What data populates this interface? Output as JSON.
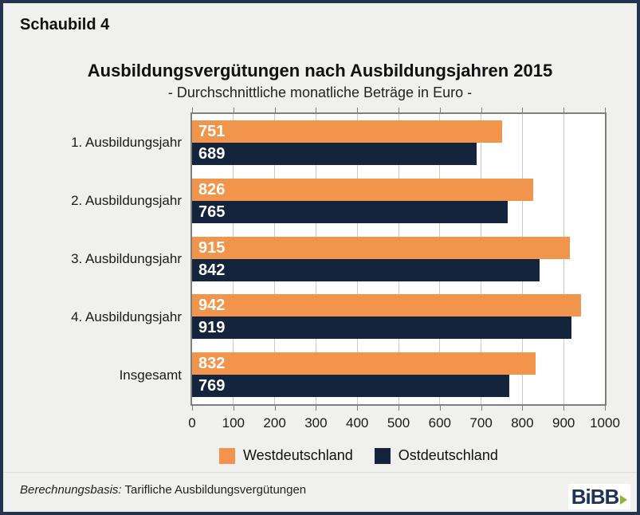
{
  "page": {
    "figure_label": "Schaubild 4",
    "title": "Ausbildungsvergütungen nach Ausbildungsjahren 2015",
    "subtitle": "- Durchschnittliche monatliche Beträge in Euro -",
    "footnote_prefix": "Berechnungsbasis:",
    "footnote_text": "Tarifliche Ausbildungsvergütungen",
    "logo_text": "BiBB",
    "logo_arrow_icon": "triangle-right"
  },
  "colors": {
    "background": "#f0f0ee",
    "outer_border": "#24334f",
    "plot_background": "#ffffff",
    "plot_border": "#7f7f7f",
    "gridline": "#c8c8c8",
    "west_orange": "#f0954b",
    "ost_navy": "#14243d",
    "value_label": "#ffffff",
    "logo_navy": "#1e3357",
    "logo_green": "#93b33c"
  },
  "chart_data": {
    "type": "bar",
    "orientation": "horizontal",
    "title": "Ausbildungsvergütungen nach Ausbildungsjahren 2015",
    "subtitle": "- Durchschnittliche monatliche Beträge in Euro -",
    "categories": [
      "1. Ausbildungsjahr",
      "2. Ausbildungsjahr",
      "3. Ausbildungsjahr",
      "4. Ausbildungsjahr",
      "Insgesamt"
    ],
    "series": [
      {
        "name": "Westdeutschland",
        "color": "#f0954b",
        "values": [
          751,
          826,
          915,
          942,
          832
        ]
      },
      {
        "name": "Ostdeutschland",
        "color": "#14243d",
        "values": [
          689,
          765,
          842,
          919,
          769
        ]
      }
    ],
    "xlim": [
      0,
      1000
    ],
    "xticks": [
      0,
      100,
      200,
      300,
      400,
      500,
      600,
      700,
      800,
      900,
      1000
    ],
    "grid": true,
    "value_labels": true,
    "legend_position": "bottom",
    "xlabel": "",
    "ylabel": ""
  }
}
